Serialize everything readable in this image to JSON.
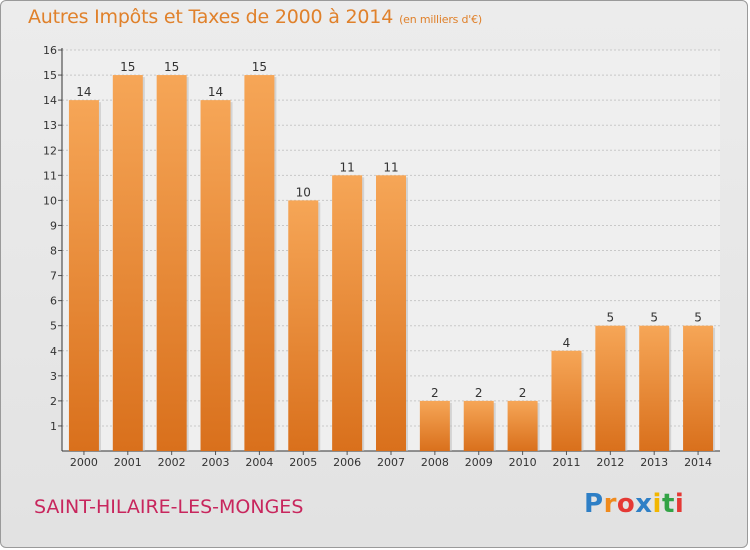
{
  "title": "Autres Impôts et Taxes de 2000 à 2014",
  "unit": "(en milliers d'€)",
  "commune": "SAINT-HILAIRE-LES-MONGES",
  "logo": {
    "text": "Proxiti",
    "colors": [
      "#2e7fc6",
      "#f08a1c",
      "#e53935",
      "#2e7fc6",
      "#f2b600",
      "#33a346",
      "#e53935"
    ]
  },
  "colors": {
    "bar": "#f0862a",
    "title": "#e0812b",
    "commune": "#c8265d",
    "grid": "#c8c8c8"
  },
  "chart_data": {
    "type": "bar",
    "title": "Autres Impôts et Taxes de 2000 à 2014",
    "categories": [
      "2000",
      "2001",
      "2002",
      "2003",
      "2004",
      "2005",
      "2006",
      "2007",
      "2008",
      "2009",
      "2010",
      "2011",
      "2012",
      "2013",
      "2014"
    ],
    "values": [
      14,
      15,
      15,
      14,
      15,
      10,
      11,
      11,
      2,
      2,
      2,
      4,
      5,
      5,
      5
    ],
    "ylim": [
      1,
      16
    ],
    "yticks": [
      1,
      2,
      3,
      4,
      5,
      6,
      7,
      8,
      9,
      10,
      11,
      12,
      13,
      14,
      15,
      16
    ],
    "grid": true,
    "data_labels": true
  }
}
